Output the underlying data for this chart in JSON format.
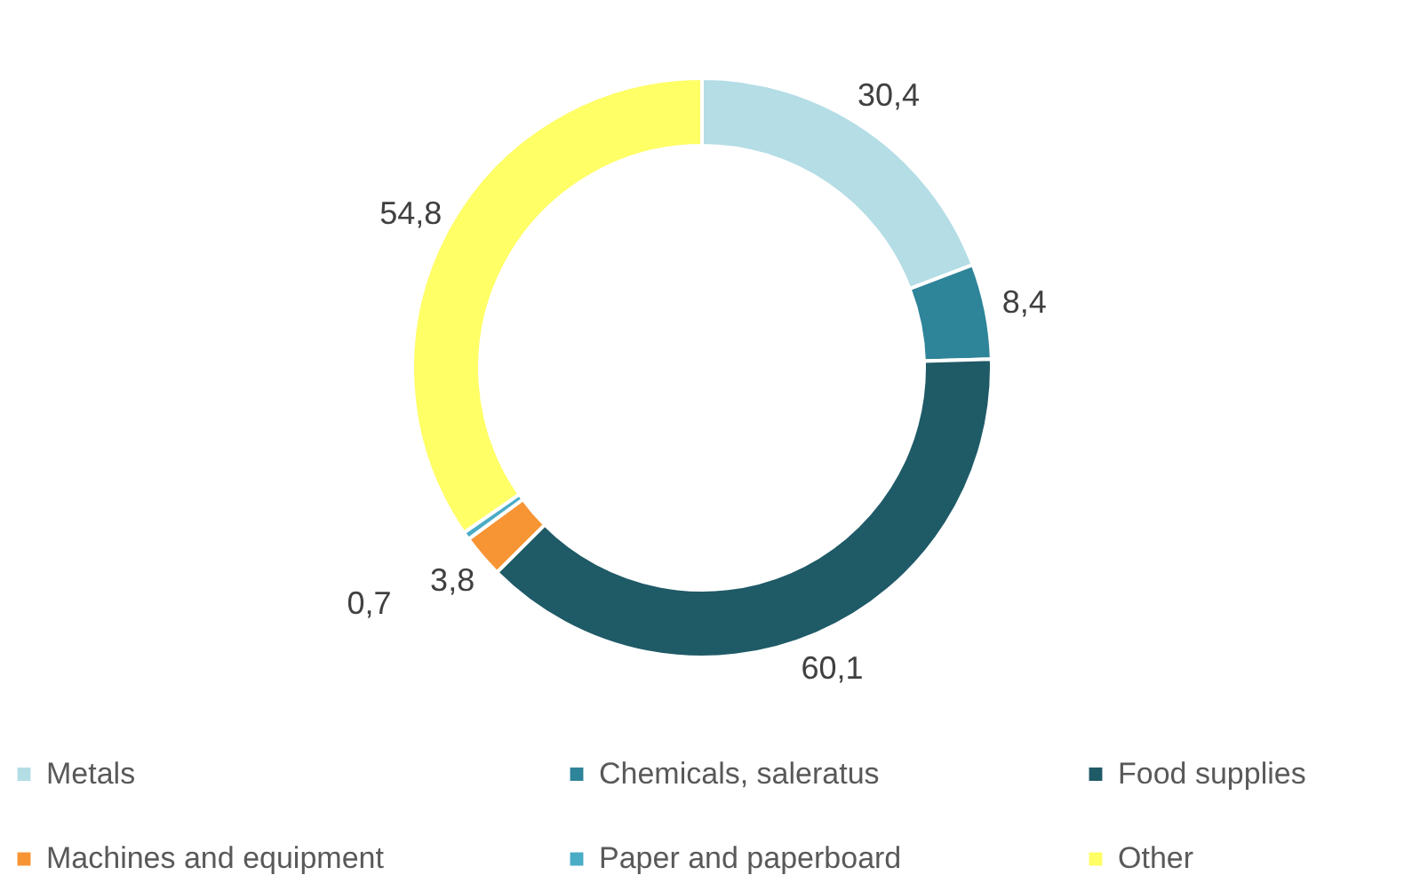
{
  "chart_data": {
    "type": "donut",
    "categories": [
      "Metals",
      "Chemicals, saleratus",
      "Food supplies",
      "Machines and equipment",
      "Paper and paperboard",
      "Other"
    ],
    "values": [
      30.4,
      8.4,
      60.1,
      3.8,
      0.7,
      54.8
    ],
    "value_labels": [
      "30,4",
      "8,4",
      "60,1",
      "3,8",
      "0,7",
      "54,8"
    ],
    "colors": [
      "#b4dde6",
      "#2e8499",
      "#1f5a67",
      "#f79433",
      "#4bacc6",
      "#ffff66"
    ],
    "legend": "bottom"
  }
}
